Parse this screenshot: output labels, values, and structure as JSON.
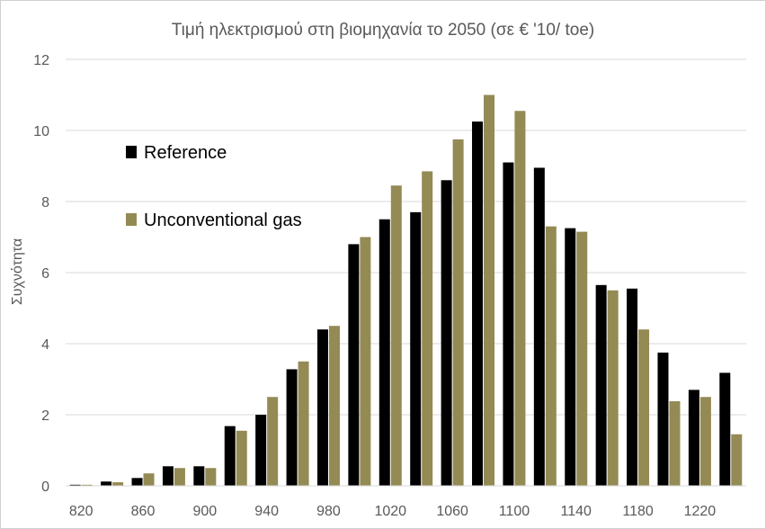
{
  "chart_data": {
    "type": "bar",
    "title": "Τιμή ηλεκτρισμού στη βιομηχανία το 2050 (σε € '10/ toe)",
    "xlabel": "",
    "ylabel": "Συχνότητα",
    "ylim": [
      0,
      12
    ],
    "yticks": [
      0,
      2,
      4,
      6,
      8,
      10,
      12
    ],
    "grid": true,
    "legend_position": "left",
    "categories": [
      820,
      840,
      860,
      880,
      900,
      920,
      940,
      960,
      980,
      1000,
      1020,
      1040,
      1060,
      1080,
      1100,
      1120,
      1140,
      1160,
      1180,
      1200,
      1220,
      1240
    ],
    "xtick_labels": [
      "820",
      "860",
      "900",
      "940",
      "980",
      "1020",
      "1060",
      "1100",
      "1140",
      "1180",
      "1220"
    ],
    "series": [
      {
        "name": "Reference",
        "color": "#000000",
        "values": [
          0.03,
          0.12,
          0.22,
          0.55,
          0.55,
          1.68,
          2.0,
          3.28,
          4.4,
          6.8,
          7.5,
          7.7,
          8.6,
          10.25,
          9.1,
          8.95,
          7.25,
          5.65,
          5.55,
          3.75,
          2.7,
          3.18
        ]
      },
      {
        "name": "Unconventional gas",
        "color": "#948A54",
        "values": [
          0.03,
          0.1,
          0.35,
          0.5,
          0.5,
          1.55,
          2.5,
          3.5,
          4.5,
          7.0,
          8.45,
          8.85,
          9.75,
          11.0,
          10.55,
          7.3,
          7.15,
          5.5,
          4.4,
          2.38,
          2.5,
          1.45
        ]
      }
    ]
  }
}
